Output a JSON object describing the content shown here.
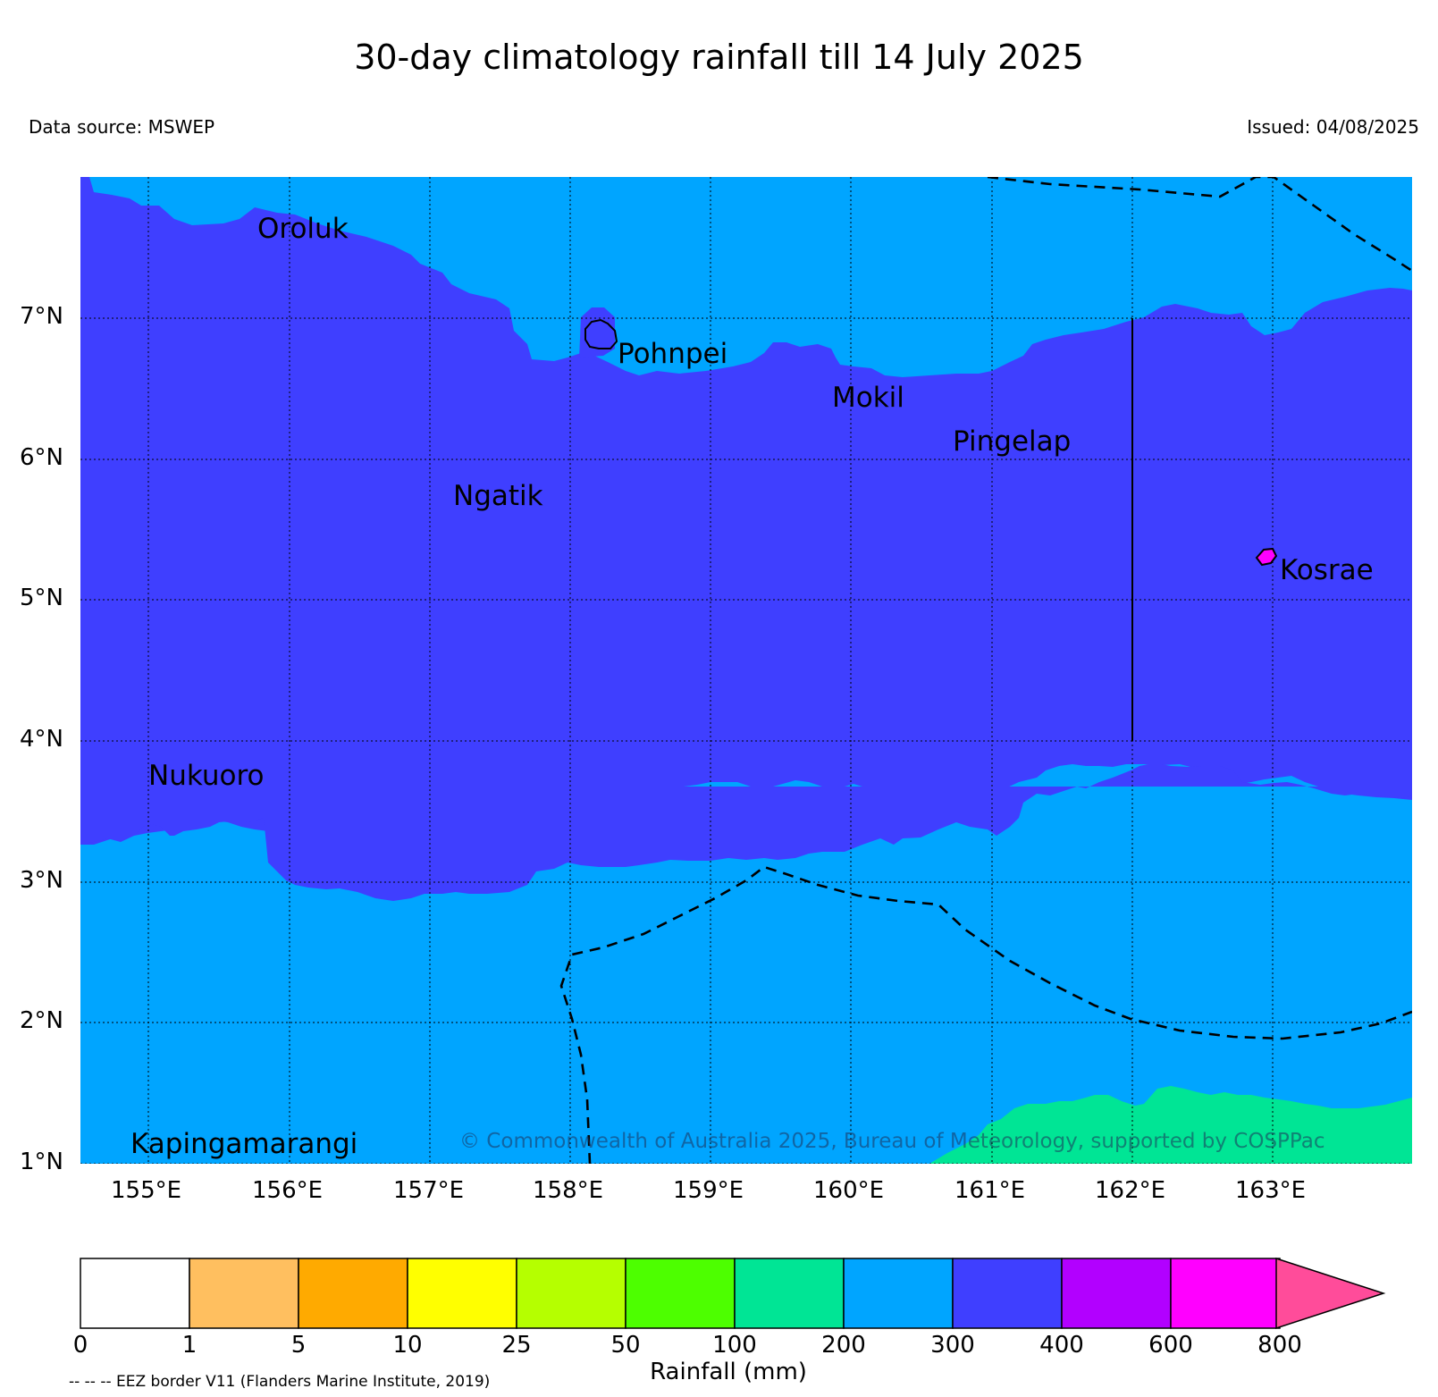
{
  "header": {
    "title": "30-day climatology rainfall till 14 July 2025",
    "data_source": "Data source: MSWEP",
    "issued": "Issued: 04/08/2025"
  },
  "map": {
    "lat_labels": [
      "7°N",
      "6°N",
      "5°N",
      "4°N",
      "3°N",
      "2°N",
      "1°N"
    ],
    "lon_labels": [
      "155°E",
      "156°E",
      "157°E",
      "158°E",
      "159°E",
      "160°E",
      "161°E",
      "162°E",
      "163°E"
    ],
    "places": [
      "Oroluk",
      "Pohnpei",
      "Mokil",
      "Pingelap",
      "Ngatik",
      "Kosrae",
      "Nukuoro",
      "Kapingamarangi"
    ],
    "copyright": "© Commonwealth of Australia 2025, Bureau of Meteorology, supported by COSPPac",
    "colors": {
      "r200_300": "#00a5ff",
      "r300_400": "#3f3fff",
      "r100_200": "#00e595",
      "r600_800": "#ff00ff"
    }
  },
  "colorbar": {
    "title": "Rainfall (mm)",
    "ticks": [
      "0",
      "1",
      "5",
      "10",
      "25",
      "50",
      "100",
      "200",
      "300",
      "400",
      "600",
      "800"
    ],
    "colors": [
      "#ffffff",
      "#ffbf5f",
      "#ffaa00",
      "#ffff00",
      "#b5ff00",
      "#4dff00",
      "#00e595",
      "#00a5ff",
      "#3f3fff",
      "#b200ff",
      "#ff00ff",
      "#ff4c9a"
    ],
    "eez_note": "-- -- -- EEZ border V11 (Flanders Marine Institute, 2019)"
  }
}
